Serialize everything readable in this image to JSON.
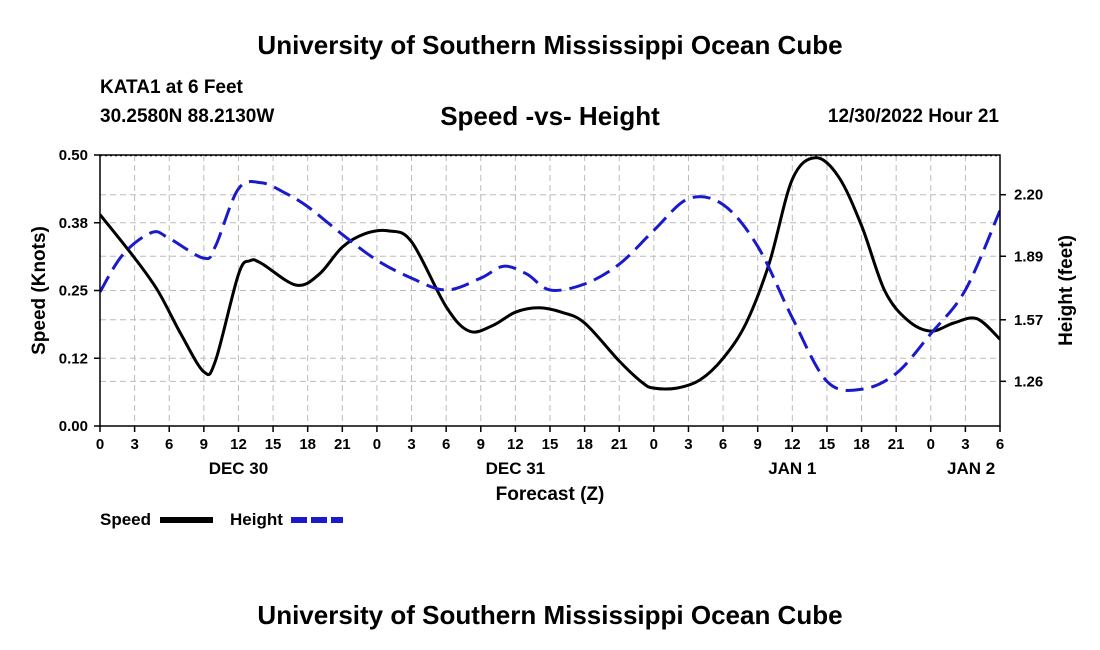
{
  "header": {
    "title": "University of Southern Mississippi Ocean Cube",
    "station": "KATA1 at 6 Feet",
    "coordinates": "30.2580N  88.2130W",
    "subtitle": "Speed -vs- Height",
    "datetime": "12/30/2022 Hour 21"
  },
  "footer": {
    "title": "University of Southern Mississippi Ocean Cube"
  },
  "legend": {
    "speed_label": "Speed",
    "height_label": "Height"
  },
  "chart_data": {
    "type": "line",
    "title": "Speed -vs- Height",
    "xlabel": "Forecast (Z)",
    "ylabel": "Speed (Knots)",
    "y2label": "Height (feet)",
    "xlim": [
      0,
      78
    ],
    "ylim": [
      0,
      0.5
    ],
    "y2lim": [
      1.035,
      2.4
    ],
    "grid": true,
    "legend_position": "bottom-left",
    "x_ticks": [
      0,
      3,
      6,
      9,
      12,
      15,
      18,
      21,
      24,
      27,
      30,
      33,
      36,
      39,
      42,
      45,
      48,
      51,
      54,
      57,
      60,
      63,
      66,
      69,
      72,
      75,
      78
    ],
    "x_tick_labels": [
      "0",
      "3",
      "6",
      "9",
      "12",
      "15",
      "18",
      "21",
      "0",
      "3",
      "6",
      "9",
      "12",
      "15",
      "18",
      "21",
      "0",
      "3",
      "6",
      "9",
      "12",
      "15",
      "18",
      "21",
      "0",
      "3",
      "6"
    ],
    "date_labels": [
      {
        "hour": 12,
        "label": "DEC 30"
      },
      {
        "hour": 36,
        "label": "DEC 31"
      },
      {
        "hour": 60,
        "label": "JAN 1"
      },
      {
        "hour": 75.5,
        "label": "JAN 2"
      }
    ],
    "y_ticks": [
      0.0,
      0.125,
      0.25,
      0.375,
      0.5
    ],
    "y_tick_labels": [
      "0.00",
      "0.12",
      "0.25",
      "0.38",
      "0.50"
    ],
    "y2_ticks": [
      1.26,
      1.57,
      1.89,
      2.2
    ],
    "y2_tick_labels": [
      "1.26",
      "1.57",
      "1.89",
      "2.20"
    ],
    "series": [
      {
        "name": "Speed",
        "axis": "left",
        "color": "#000000",
        "dash": "solid",
        "x": [
          0,
          3,
          5,
          7,
          9,
          10,
          12,
          13,
          14,
          17,
          19,
          21,
          23,
          25,
          27,
          30,
          32,
          34,
          36,
          38,
          40,
          42,
          45,
          47,
          48,
          50,
          52,
          54,
          56,
          58,
          60,
          62,
          64,
          66,
          68,
          70,
          72,
          74,
          76,
          78
        ],
        "y": [
          0.39,
          0.31,
          0.25,
          0.17,
          0.1,
          0.12,
          0.28,
          0.305,
          0.3,
          0.26,
          0.28,
          0.33,
          0.355,
          0.36,
          0.34,
          0.22,
          0.175,
          0.185,
          0.21,
          0.218,
          0.21,
          0.19,
          0.12,
          0.08,
          0.07,
          0.07,
          0.085,
          0.125,
          0.19,
          0.3,
          0.455,
          0.495,
          0.46,
          0.37,
          0.25,
          0.195,
          0.175,
          0.19,
          0.198,
          0.16
        ]
      },
      {
        "name": "Height",
        "axis": "right",
        "color": "#1a1acc",
        "dash": "dashed",
        "x": [
          0,
          2,
          4.5,
          6,
          9,
          10,
          12,
          14,
          16,
          18,
          21,
          24,
          27,
          30,
          33,
          35,
          37,
          39,
          42,
          45,
          48,
          51,
          54,
          57,
          60,
          63,
          66,
          69,
          72,
          75,
          78
        ],
        "y": [
          1.71,
          1.9,
          2.01,
          1.98,
          1.88,
          1.94,
          2.23,
          2.26,
          2.21,
          2.14,
          2.0,
          1.87,
          1.78,
          1.72,
          1.78,
          1.84,
          1.8,
          1.72,
          1.75,
          1.85,
          2.02,
          2.18,
          2.15,
          1.94,
          1.58,
          1.26,
          1.22,
          1.3,
          1.5,
          1.72,
          2.12
        ]
      }
    ]
  }
}
